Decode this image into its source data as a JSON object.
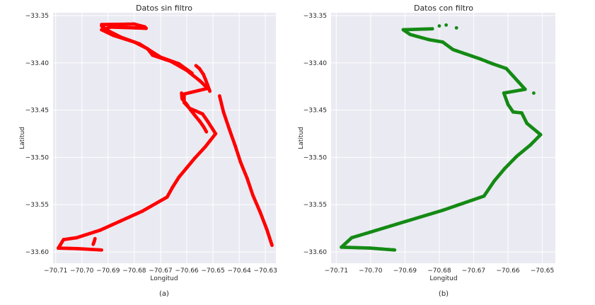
{
  "chart_data": [
    {
      "type": "scatter",
      "title": "Datos sin filtro",
      "xlabel": "Longitud",
      "ylabel": "Latitud",
      "caption": "(a)",
      "xlim": [
        -70.711,
        -70.626
      ],
      "ylim": [
        -33.612,
        -33.347
      ],
      "x_ticks": [
        -70.71,
        -70.7,
        -70.69,
        -70.68,
        -70.67,
        -70.66,
        -70.65,
        -70.64,
        -70.63
      ],
      "x_tick_labels": [
        "−70.71",
        "−70.70",
        "−70.69",
        "−70.68",
        "−70.67",
        "−70.66",
        "−70.65",
        "−70.64",
        "−70.63"
      ],
      "y_ticks": [
        -33.35,
        -33.4,
        -33.45,
        -33.5,
        -33.55,
        -33.6
      ],
      "y_tick_labels": [
        "−33.35",
        "−33.40",
        "−33.45",
        "−33.50",
        "−33.55",
        "−33.60"
      ],
      "grid": true,
      "background": "#eaeaf2",
      "marker_color": "#ff0000",
      "tracks": [
        [
          [
            -70.6925,
            -33.3595
          ],
          [
            -70.68,
            -33.359
          ],
          [
            -70.676,
            -33.362
          ],
          [
            -70.6755,
            -33.3635
          ],
          [
            -70.68,
            -33.363
          ],
          [
            -70.689,
            -33.3622
          ],
          [
            -70.6925,
            -33.365
          ],
          [
            -70.688,
            -33.371
          ],
          [
            -70.68,
            -33.378
          ],
          [
            -70.675,
            -33.385
          ],
          [
            -70.673,
            -33.392
          ],
          [
            -70.666,
            -33.3985
          ],
          [
            -70.66,
            -33.408
          ],
          [
            -70.655,
            -33.419
          ],
          [
            -70.652,
            -33.427
          ],
          [
            -70.661,
            -33.433
          ],
          [
            -70.661,
            -33.442
          ],
          [
            -70.659,
            -33.448
          ],
          [
            -70.654,
            -33.454
          ],
          [
            -70.652,
            -33.462
          ],
          [
            -70.649,
            -33.475
          ],
          [
            -70.653,
            -33.489
          ],
          [
            -70.657,
            -33.501
          ],
          [
            -70.66,
            -33.511
          ],
          [
            -70.663,
            -33.521
          ],
          [
            -70.6655,
            -33.532
          ],
          [
            -70.6675,
            -33.542
          ],
          [
            -70.677,
            -33.557
          ],
          [
            -70.685,
            -33.567
          ],
          [
            -70.693,
            -33.577
          ],
          [
            -70.702,
            -33.585
          ],
          [
            -70.707,
            -33.587
          ],
          [
            -70.709,
            -33.596
          ],
          [
            -70.702,
            -33.5965
          ],
          [
            -70.6925,
            -33.598
          ]
        ],
        [
          [
            -70.6925,
            -33.361
          ],
          [
            -70.69,
            -33.366
          ],
          [
            -70.685,
            -33.373
          ],
          [
            -70.678,
            -33.38
          ],
          [
            -70.674,
            -33.387
          ],
          [
            -70.67,
            -33.394
          ],
          [
            -70.663,
            -33.401
          ],
          [
            -70.658,
            -33.411
          ]
        ],
        [
          [
            -70.6565,
            -33.403
          ],
          [
            -70.6552,
            -33.406
          ],
          [
            -70.6537,
            -33.412
          ],
          [
            -70.6528,
            -33.418
          ],
          [
            -70.652,
            -33.424
          ],
          [
            -70.6512,
            -33.43
          ]
        ],
        [
          [
            -70.662,
            -33.432
          ],
          [
            -70.6618,
            -33.438
          ],
          [
            -70.66,
            -33.444
          ],
          [
            -70.6585,
            -33.45
          ],
          [
            -70.6568,
            -33.456
          ],
          [
            -70.655,
            -33.462
          ],
          [
            -70.6535,
            -33.468
          ],
          [
            -70.6525,
            -33.473
          ]
        ],
        [
          [
            -70.6475,
            -33.435
          ],
          [
            -70.646,
            -33.452
          ],
          [
            -70.6438,
            -33.47
          ],
          [
            -70.6415,
            -33.488
          ],
          [
            -70.6395,
            -33.505
          ],
          [
            -70.637,
            -33.522
          ],
          [
            -70.6348,
            -33.54
          ],
          [
            -70.632,
            -33.558
          ],
          [
            -70.6295,
            -33.576
          ],
          [
            -70.6275,
            -33.593
          ]
        ],
        [
          [
            -70.695,
            -33.586
          ],
          [
            -70.6953,
            -33.589
          ],
          [
            -70.6957,
            -33.592
          ]
        ]
      ]
    },
    {
      "type": "scatter",
      "title": "Datos con filtro",
      "xlabel": "Longitud",
      "ylabel": "Latitud",
      "caption": "(b)",
      "xlim": [
        -70.7115,
        -70.6462
      ],
      "ylim": [
        -33.612,
        -33.347
      ],
      "x_ticks": [
        -70.71,
        -70.7,
        -70.69,
        -70.68,
        -70.67,
        -70.66,
        -70.65
      ],
      "x_tick_labels": [
        "−70.71",
        "−70.70",
        "−70.69",
        "−70.68",
        "−70.67",
        "−70.66",
        "−70.65"
      ],
      "y_ticks": [
        -33.35,
        -33.4,
        -33.45,
        -33.5,
        -33.55,
        -33.6
      ],
      "y_tick_labels": [
        "−33.35",
        "−33.40",
        "−33.45",
        "−33.50",
        "−33.55",
        "−33.60"
      ],
      "grid": true,
      "background": "#eaeaf2",
      "marker_color": "#148a14",
      "tracks": [
        [
          [
            -70.682,
            -33.364
          ],
          [
            -70.6905,
            -33.365
          ],
          [
            -70.6885,
            -33.37
          ],
          [
            -70.683,
            -33.3755
          ],
          [
            -70.679,
            -33.378
          ],
          [
            -70.676,
            -33.386
          ],
          [
            -70.672,
            -33.391
          ],
          [
            -70.668,
            -33.396
          ],
          [
            -70.6645,
            -33.401
          ],
          [
            -70.6605,
            -33.406
          ],
          [
            -70.6585,
            -33.414
          ],
          [
            -70.655,
            -33.428
          ],
          [
            -70.6612,
            -33.432
          ],
          [
            -70.66,
            -33.444
          ],
          [
            -70.6585,
            -33.452
          ],
          [
            -70.656,
            -33.453
          ],
          [
            -70.6545,
            -33.464
          ],
          [
            -70.6505,
            -33.476
          ],
          [
            -70.6535,
            -33.487
          ],
          [
            -70.6575,
            -33.499
          ],
          [
            -70.661,
            -33.512
          ],
          [
            -70.664,
            -33.525
          ],
          [
            -70.667,
            -33.541
          ],
          [
            -70.679,
            -33.556
          ],
          [
            -70.69,
            -33.568
          ],
          [
            -70.7,
            -33.579
          ],
          [
            -70.7055,
            -33.585
          ],
          [
            -70.7085,
            -33.595
          ],
          [
            -70.7,
            -33.596
          ],
          [
            -70.693,
            -33.598
          ]
        ]
      ],
      "outliers": [
        [
          -70.678,
          -33.36
        ],
        [
          -70.675,
          -33.363
        ],
        [
          -70.68,
          -33.361
        ],
        [
          -70.6525,
          -33.432
        ]
      ]
    }
  ]
}
